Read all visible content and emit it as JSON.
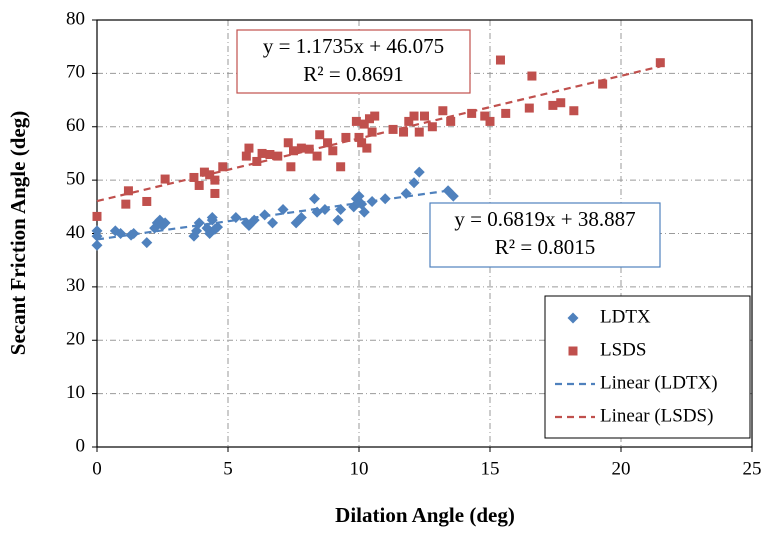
{
  "chart_data": {
    "type": "scatter",
    "x_label": "Dilation Angle (deg)",
    "y_label": "Secant Friction Angle (deg)",
    "xlim": [
      0,
      25
    ],
    "xticks": [
      0,
      5,
      10,
      15,
      20,
      25
    ],
    "ylim": [
      0,
      80
    ],
    "yticks": [
      0,
      10,
      20,
      30,
      40,
      50,
      60,
      70,
      80
    ],
    "grid": true,
    "legend": "lower right",
    "series": [
      {
        "name": "LDTX",
        "color": "#4f81bd",
        "marker": "diamond",
        "x": [
          0,
          0,
          0,
          0.7,
          0.9,
          1.3,
          1.4,
          1.9,
          2.2,
          2.3,
          2.4,
          2.5,
          2.6,
          3.7,
          3.8,
          3.9,
          4.2,
          4.3,
          4.4,
          4.4,
          4.5,
          4.6,
          5.3,
          5.7,
          5.8,
          6,
          6.4,
          6.7,
          7.1,
          7.6,
          7.8,
          8.3,
          8.4,
          8.7,
          9.2,
          9.3,
          9.8,
          9.9,
          10,
          10.1,
          10.2,
          10.5,
          11,
          11.8,
          12.1,
          12.3,
          13.4,
          13.6
        ],
        "values": [
          40.5,
          39.5,
          37.8,
          40.5,
          40,
          39.7,
          40,
          38.3,
          41,
          42,
          42.5,
          41.5,
          42,
          39.5,
          40.5,
          42,
          41,
          40,
          42.5,
          43,
          40.8,
          41.2,
          43,
          42,
          41.5,
          42.5,
          43.5,
          42,
          44.5,
          42,
          43,
          46.5,
          44,
          44.5,
          42.5,
          44.5,
          45,
          46.5,
          47,
          45.5,
          44,
          46,
          46.5,
          47.5,
          49.5,
          51.5,
          48,
          47
        ],
        "trendline": {
          "name": "Linear (LDTX)",
          "slope": 0.6819,
          "intercept": 38.887,
          "equation": "y = 0.6819x + 38.887",
          "r2": "R² = 0.8015"
        }
      },
      {
        "name": "LSDS",
        "color": "#c0504d",
        "marker": "square",
        "x": [
          0,
          1.1,
          1.2,
          1.9,
          2.6,
          3.7,
          3.9,
          4.1,
          4.3,
          4.5,
          4.5,
          4.8,
          5.7,
          5.8,
          6.1,
          6.3,
          6.6,
          6.9,
          7.3,
          7.4,
          7.5,
          7.8,
          8.1,
          8.4,
          8.5,
          8.8,
          9,
          9.3,
          9.5,
          9.9,
          10,
          10.1,
          10.2,
          10.3,
          10.4,
          10.5,
          10.6,
          11.3,
          11.7,
          11.9,
          12.1,
          12.3,
          12.5,
          12.8,
          13.2,
          13.5,
          14.3,
          14.8,
          15,
          15.4,
          15.6,
          16.5,
          16.6,
          17.4,
          17.7,
          18.2,
          19.3,
          21.5
        ],
        "values": [
          43.2,
          45.5,
          48,
          46,
          50.2,
          50.5,
          49,
          51.5,
          51,
          47.5,
          50,
          52.5,
          54.5,
          56,
          53.5,
          55,
          54.8,
          54.5,
          57,
          52.5,
          55.5,
          56,
          55.8,
          54.5,
          58.5,
          57,
          55.5,
          52.5,
          58,
          61,
          58,
          57,
          60.5,
          56,
          61.5,
          59,
          62,
          59.5,
          59,
          61,
          62,
          59,
          62,
          60,
          63,
          61,
          62.5,
          62,
          61,
          72.5,
          62.5,
          63.5,
          69.5,
          64,
          64.5,
          63,
          68,
          72
        ],
        "trendline": {
          "name": "Linear (LSDS)",
          "slope": 1.1735,
          "intercept": 46.075,
          "equation": "y = 1.1735x + 46.075",
          "r2": "R² = 0.8691"
        }
      }
    ]
  }
}
